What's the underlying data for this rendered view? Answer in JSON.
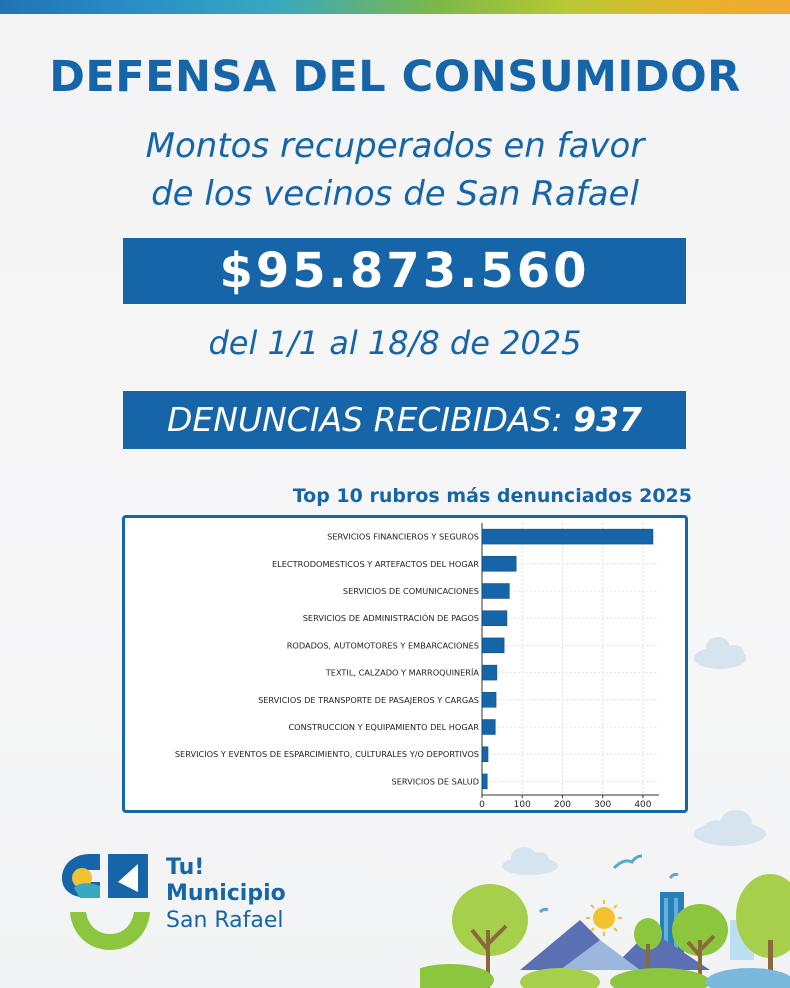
{
  "header": {
    "title": "DEFENSA DEL CONSUMIDOR",
    "subtitle_line1": "Montos recuperados en favor",
    "subtitle_line2": "de los vecinos de San Rafael"
  },
  "amount": "$95.873.560",
  "period": "del 1/1 al 18/8 de 2025",
  "denuncias": {
    "label": "DENUNCIAS RECIBIDAS:",
    "value": "937"
  },
  "chart_title": "Top 10 rubros más denunciados 2025",
  "chart_data": {
    "type": "bar",
    "orientation": "horizontal",
    "categories": [
      "SERVICIOS FINANCIEROS Y SEGUROS",
      "ELECTRODOMESTICOS Y ARTEFACTOS DEL HOGAR",
      "SERVICIOS DE COMUNICACIONES",
      "SERVICIOS DE ADMINISTRACIÓN DE PAGOS",
      "RODADOS, AUTOMOTORES Y EMBARCACIONES",
      "TEXTIL, CALZADO Y MARROQUINERÍA",
      "SERVICIOS DE TRANSPORTE DE PASAJEROS Y CARGAS",
      "CONSTRUCCION Y EQUIPAMIENTO DEL HOGAR",
      "SERVICIOS Y EVENTOS DE ESPARCIMIENTO, CULTURALES Y/O DEPORTIVOS",
      "SERVICIOS DE SALUD"
    ],
    "values": [
      425,
      85,
      68,
      62,
      55,
      37,
      35,
      33,
      15,
      13
    ],
    "xticks": [
      0,
      100,
      200,
      300,
      400
    ],
    "xlim": [
      0,
      440
    ],
    "grid": true,
    "bar_color": "#1565a8"
  },
  "logo": {
    "line1": "Tu!",
    "line2": "Municipio",
    "line3": "San Rafael"
  },
  "colors": {
    "brand_blue": "#1565a8",
    "accent_green": "#8cc63f",
    "accent_yellow": "#f2c230"
  }
}
